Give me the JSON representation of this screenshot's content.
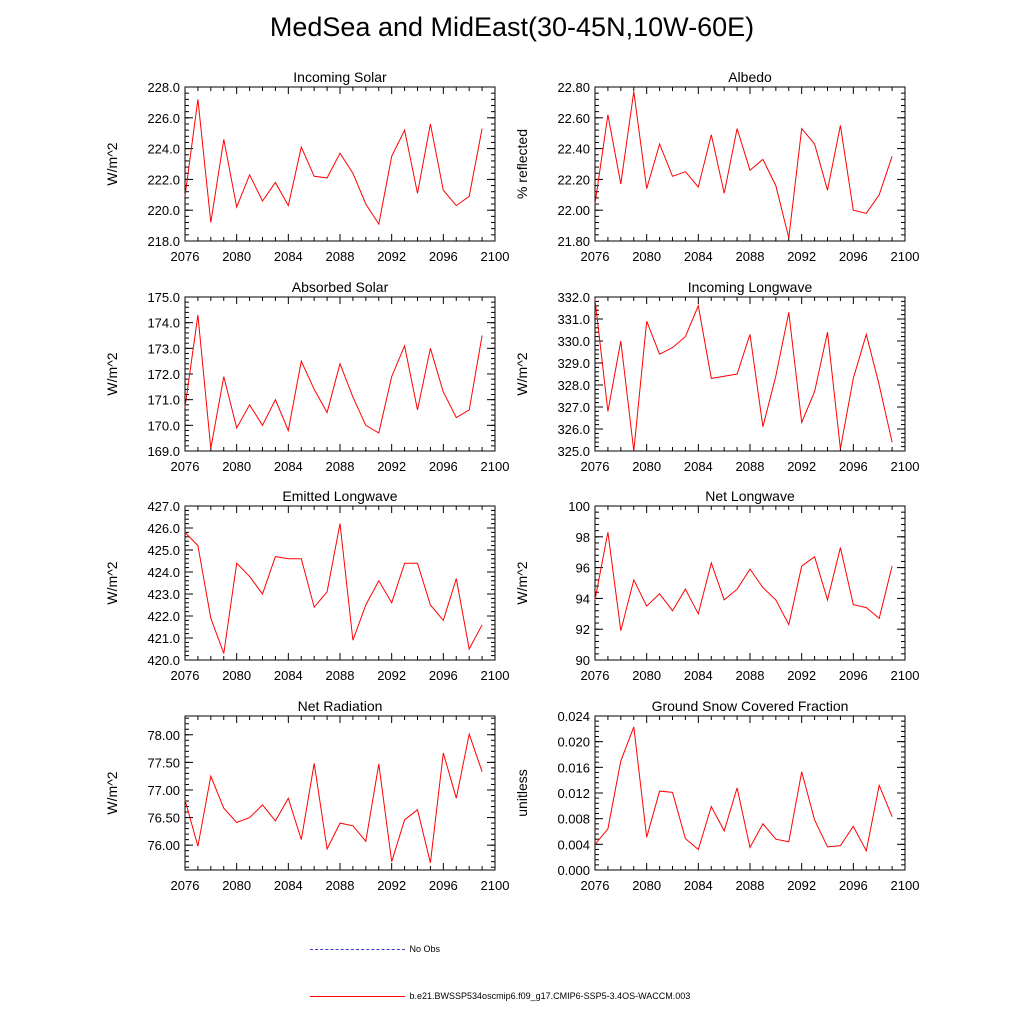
{
  "title": "MedSea and MidEast(30-45N,10W-60E)",
  "legend": {
    "obs_label": "No Obs",
    "model_label": "b.e21.BWSSP534oscmip6.f09_g17.CMIP6-SSP5-3.4OS-WACCM.003"
  },
  "colors": {
    "model_line": "#ff0000",
    "obs_line": "#3b3bd6",
    "axis": "#000000"
  },
  "chart_data": [
    {
      "type": "line",
      "title": "Incoming Solar",
      "ylabel": "W/m^2",
      "xlabel": "",
      "xlim": [
        2076,
        2100
      ],
      "ylim": [
        218,
        228
      ],
      "xticks": [
        2076,
        2080,
        2084,
        2088,
        2092,
        2096,
        2100
      ],
      "yticks": [
        218,
        220,
        222,
        224,
        226,
        228
      ],
      "ydecimals": 1,
      "x": [
        2076,
        2077,
        2078,
        2079,
        2080,
        2081,
        2082,
        2083,
        2084,
        2085,
        2086,
        2087,
        2088,
        2089,
        2090,
        2091,
        2092,
        2093,
        2094,
        2095,
        2096,
        2097,
        2098,
        2099
      ],
      "series": [
        {
          "name": "b.e21.BWSSP534oscmip6.f09_g17.CMIP6-SSP5-3.4OS-WACCM.003",
          "values": [
            220.9,
            227.2,
            219.2,
            224.6,
            220.2,
            222.3,
            220.6,
            221.8,
            220.3,
            224.1,
            222.2,
            222.1,
            223.7,
            222.4,
            220.4,
            219.1,
            223.5,
            225.2,
            221.1,
            225.6,
            221.3,
            220.3,
            220.9,
            225.3
          ]
        }
      ]
    },
    {
      "type": "line",
      "title": "Albedo",
      "ylabel": "% reflected",
      "xlabel": "",
      "xlim": [
        2076,
        2100
      ],
      "ylim": [
        21.8,
        22.8
      ],
      "xticks": [
        2076,
        2080,
        2084,
        2088,
        2092,
        2096,
        2100
      ],
      "yticks": [
        21.8,
        22.0,
        22.2,
        22.4,
        22.6,
        22.8
      ],
      "ydecimals": 2,
      "x": [
        2076,
        2077,
        2078,
        2079,
        2080,
        2081,
        2082,
        2083,
        2084,
        2085,
        2086,
        2087,
        2088,
        2089,
        2090,
        2091,
        2092,
        2093,
        2094,
        2095,
        2096,
        2097,
        2098,
        2099
      ],
      "series": [
        {
          "name": "b.e21.BWSSP534oscmip6.f09_g17.CMIP6-SSP5-3.4OS-WACCM.003",
          "values": [
            22.04,
            22.62,
            22.17,
            22.77,
            22.14,
            22.43,
            22.22,
            22.25,
            22.15,
            22.49,
            22.11,
            22.53,
            22.26,
            22.33,
            22.16,
            21.82,
            22.53,
            22.43,
            22.13,
            22.55,
            22.0,
            21.98,
            22.1,
            22.35
          ]
        }
      ]
    },
    {
      "type": "line",
      "title": "Absorbed Solar",
      "ylabel": "W/m^2",
      "xlabel": "",
      "xlim": [
        2076,
        2100
      ],
      "ylim": [
        169,
        175
      ],
      "xticks": [
        2076,
        2080,
        2084,
        2088,
        2092,
        2096,
        2100
      ],
      "yticks": [
        169,
        170,
        171,
        172,
        173,
        174,
        175
      ],
      "ydecimals": 1,
      "x": [
        2076,
        2077,
        2078,
        2079,
        2080,
        2081,
        2082,
        2083,
        2084,
        2085,
        2086,
        2087,
        2088,
        2089,
        2090,
        2091,
        2092,
        2093,
        2094,
        2095,
        2096,
        2097,
        2098,
        2099
      ],
      "series": [
        {
          "name": "b.e21.BWSSP534oscmip6.f09_g17.CMIP6-SSP5-3.4OS-WACCM.003",
          "values": [
            170.7,
            174.3,
            169.1,
            171.9,
            169.9,
            170.8,
            170.0,
            171.0,
            169.8,
            172.5,
            171.4,
            170.5,
            172.4,
            171.1,
            170.0,
            169.7,
            171.9,
            173.1,
            170.6,
            173.0,
            171.3,
            170.3,
            170.6,
            173.5
          ]
        }
      ]
    },
    {
      "type": "line",
      "title": "Incoming Longwave",
      "ylabel": "W/m^2",
      "xlabel": "",
      "xlim": [
        2076,
        2100
      ],
      "ylim": [
        325,
        332
      ],
      "xticks": [
        2076,
        2080,
        2084,
        2088,
        2092,
        2096,
        2100
      ],
      "yticks": [
        325,
        326,
        327,
        328,
        329,
        330,
        331,
        332
      ],
      "ydecimals": 1,
      "x": [
        2076,
        2077,
        2078,
        2079,
        2080,
        2081,
        2082,
        2083,
        2084,
        2085,
        2086,
        2087,
        2088,
        2089,
        2090,
        2091,
        2092,
        2093,
        2094,
        2095,
        2096,
        2097,
        2098,
        2099
      ],
      "series": [
        {
          "name": "b.e21.BWSSP534oscmip6.f09_g17.CMIP6-SSP5-3.4OS-WACCM.003",
          "values": [
            331.9,
            326.8,
            330.0,
            325.0,
            330.9,
            329.4,
            329.7,
            330.2,
            331.6,
            328.3,
            328.4,
            328.5,
            330.3,
            326.1,
            328.4,
            331.3,
            326.3,
            327.7,
            330.4,
            325.1,
            328.3,
            330.3,
            328.0,
            325.4
          ]
        }
      ]
    },
    {
      "type": "line",
      "title": "Emitted Longwave",
      "ylabel": "W/m^2",
      "xlabel": "",
      "xlim": [
        2076,
        2100
      ],
      "ylim": [
        420,
        427
      ],
      "xticks": [
        2076,
        2080,
        2084,
        2088,
        2092,
        2096,
        2100
      ],
      "yticks": [
        420,
        421,
        422,
        423,
        424,
        425,
        426,
        427
      ],
      "ydecimals": 1,
      "x": [
        2076,
        2077,
        2078,
        2079,
        2080,
        2081,
        2082,
        2083,
        2084,
        2085,
        2086,
        2087,
        2088,
        2089,
        2090,
        2091,
        2092,
        2093,
        2094,
        2095,
        2096,
        2097,
        2098,
        2099
      ],
      "series": [
        {
          "name": "b.e21.BWSSP534oscmip6.f09_g17.CMIP6-SSP5-3.4OS-WACCM.003",
          "values": [
            425.8,
            425.2,
            421.9,
            420.3,
            424.4,
            423.8,
            423.0,
            424.7,
            424.6,
            424.6,
            422.4,
            423.1,
            426.2,
            420.9,
            422.5,
            423.6,
            422.6,
            424.4,
            424.4,
            422.5,
            421.8,
            423.7,
            420.5,
            421.6
          ]
        }
      ]
    },
    {
      "type": "line",
      "title": "Net Longwave",
      "ylabel": "W/m^2",
      "xlabel": "",
      "xlim": [
        2076,
        2100
      ],
      "ylim": [
        90,
        100
      ],
      "xticks": [
        2076,
        2080,
        2084,
        2088,
        2092,
        2096,
        2100
      ],
      "yticks": [
        90,
        92,
        94,
        96,
        98,
        100
      ],
      "ydecimals": 0,
      "x": [
        2076,
        2077,
        2078,
        2079,
        2080,
        2081,
        2082,
        2083,
        2084,
        2085,
        2086,
        2087,
        2088,
        2089,
        2090,
        2091,
        2092,
        2093,
        2094,
        2095,
        2096,
        2097,
        2098,
        2099
      ],
      "series": [
        {
          "name": "b.e21.BWSSP534oscmip6.f09_g17.CMIP6-SSP5-3.4OS-WACCM.003",
          "values": [
            93.9,
            98.3,
            91.9,
            95.2,
            93.5,
            94.3,
            93.2,
            94.6,
            93.0,
            96.3,
            93.9,
            94.6,
            95.9,
            94.7,
            93.9,
            92.3,
            96.1,
            96.7,
            93.9,
            97.3,
            93.6,
            93.4,
            92.7,
            96.1
          ]
        }
      ]
    },
    {
      "type": "line",
      "title": "Net Radiation",
      "ylabel": "W/m^2",
      "xlabel": "",
      "xlim": [
        2076,
        2100
      ],
      "ylim": [
        75.55,
        78.34
      ],
      "xticks": [
        2076,
        2080,
        2084,
        2088,
        2092,
        2096,
        2100
      ],
      "yticks": [
        76.0,
        76.5,
        77.0,
        77.5,
        78.0
      ],
      "ydecimals": 2,
      "x": [
        2076,
        2077,
        2078,
        2079,
        2080,
        2081,
        2082,
        2083,
        2084,
        2085,
        2086,
        2087,
        2088,
        2089,
        2090,
        2091,
        2092,
        2093,
        2094,
        2095,
        2096,
        2097,
        2098,
        2099
      ],
      "series": [
        {
          "name": "b.e21.BWSSP534oscmip6.f09_g17.CMIP6-SSP5-3.4OS-WACCM.003",
          "values": [
            76.82,
            75.98,
            77.25,
            76.67,
            76.41,
            76.5,
            76.73,
            76.44,
            76.85,
            76.1,
            77.48,
            75.93,
            76.4,
            76.35,
            76.07,
            77.47,
            75.7,
            76.46,
            76.64,
            75.68,
            77.67,
            76.85,
            78.01,
            77.33
          ]
        }
      ]
    },
    {
      "type": "line",
      "title": "Ground Snow Covered Fraction",
      "ylabel": "unitless",
      "xlabel": "",
      "xlim": [
        2076,
        2100
      ],
      "ylim": [
        0,
        0.024
      ],
      "xticks": [
        2076,
        2080,
        2084,
        2088,
        2092,
        2096,
        2100
      ],
      "yticks": [
        0.0,
        0.004,
        0.008,
        0.012,
        0.016,
        0.02,
        0.024
      ],
      "ydecimals": 3,
      "x": [
        2076,
        2077,
        2078,
        2079,
        2080,
        2081,
        2082,
        2083,
        2084,
        2085,
        2086,
        2087,
        2088,
        2089,
        2090,
        2091,
        2092,
        2093,
        2094,
        2095,
        2096,
        2097,
        2098,
        2099
      ],
      "series": [
        {
          "name": "b.e21.BWSSP534oscmip6.f09_g17.CMIP6-SSP5-3.4OS-WACCM.003",
          "values": [
            0.004,
            0.0064,
            0.017,
            0.0223,
            0.0051,
            0.0123,
            0.0121,
            0.0049,
            0.0032,
            0.0099,
            0.0061,
            0.0128,
            0.0035,
            0.0072,
            0.0048,
            0.0044,
            0.0153,
            0.0078,
            0.0036,
            0.0038,
            0.0068,
            0.003,
            0.0132,
            0.0083
          ]
        }
      ]
    }
  ]
}
